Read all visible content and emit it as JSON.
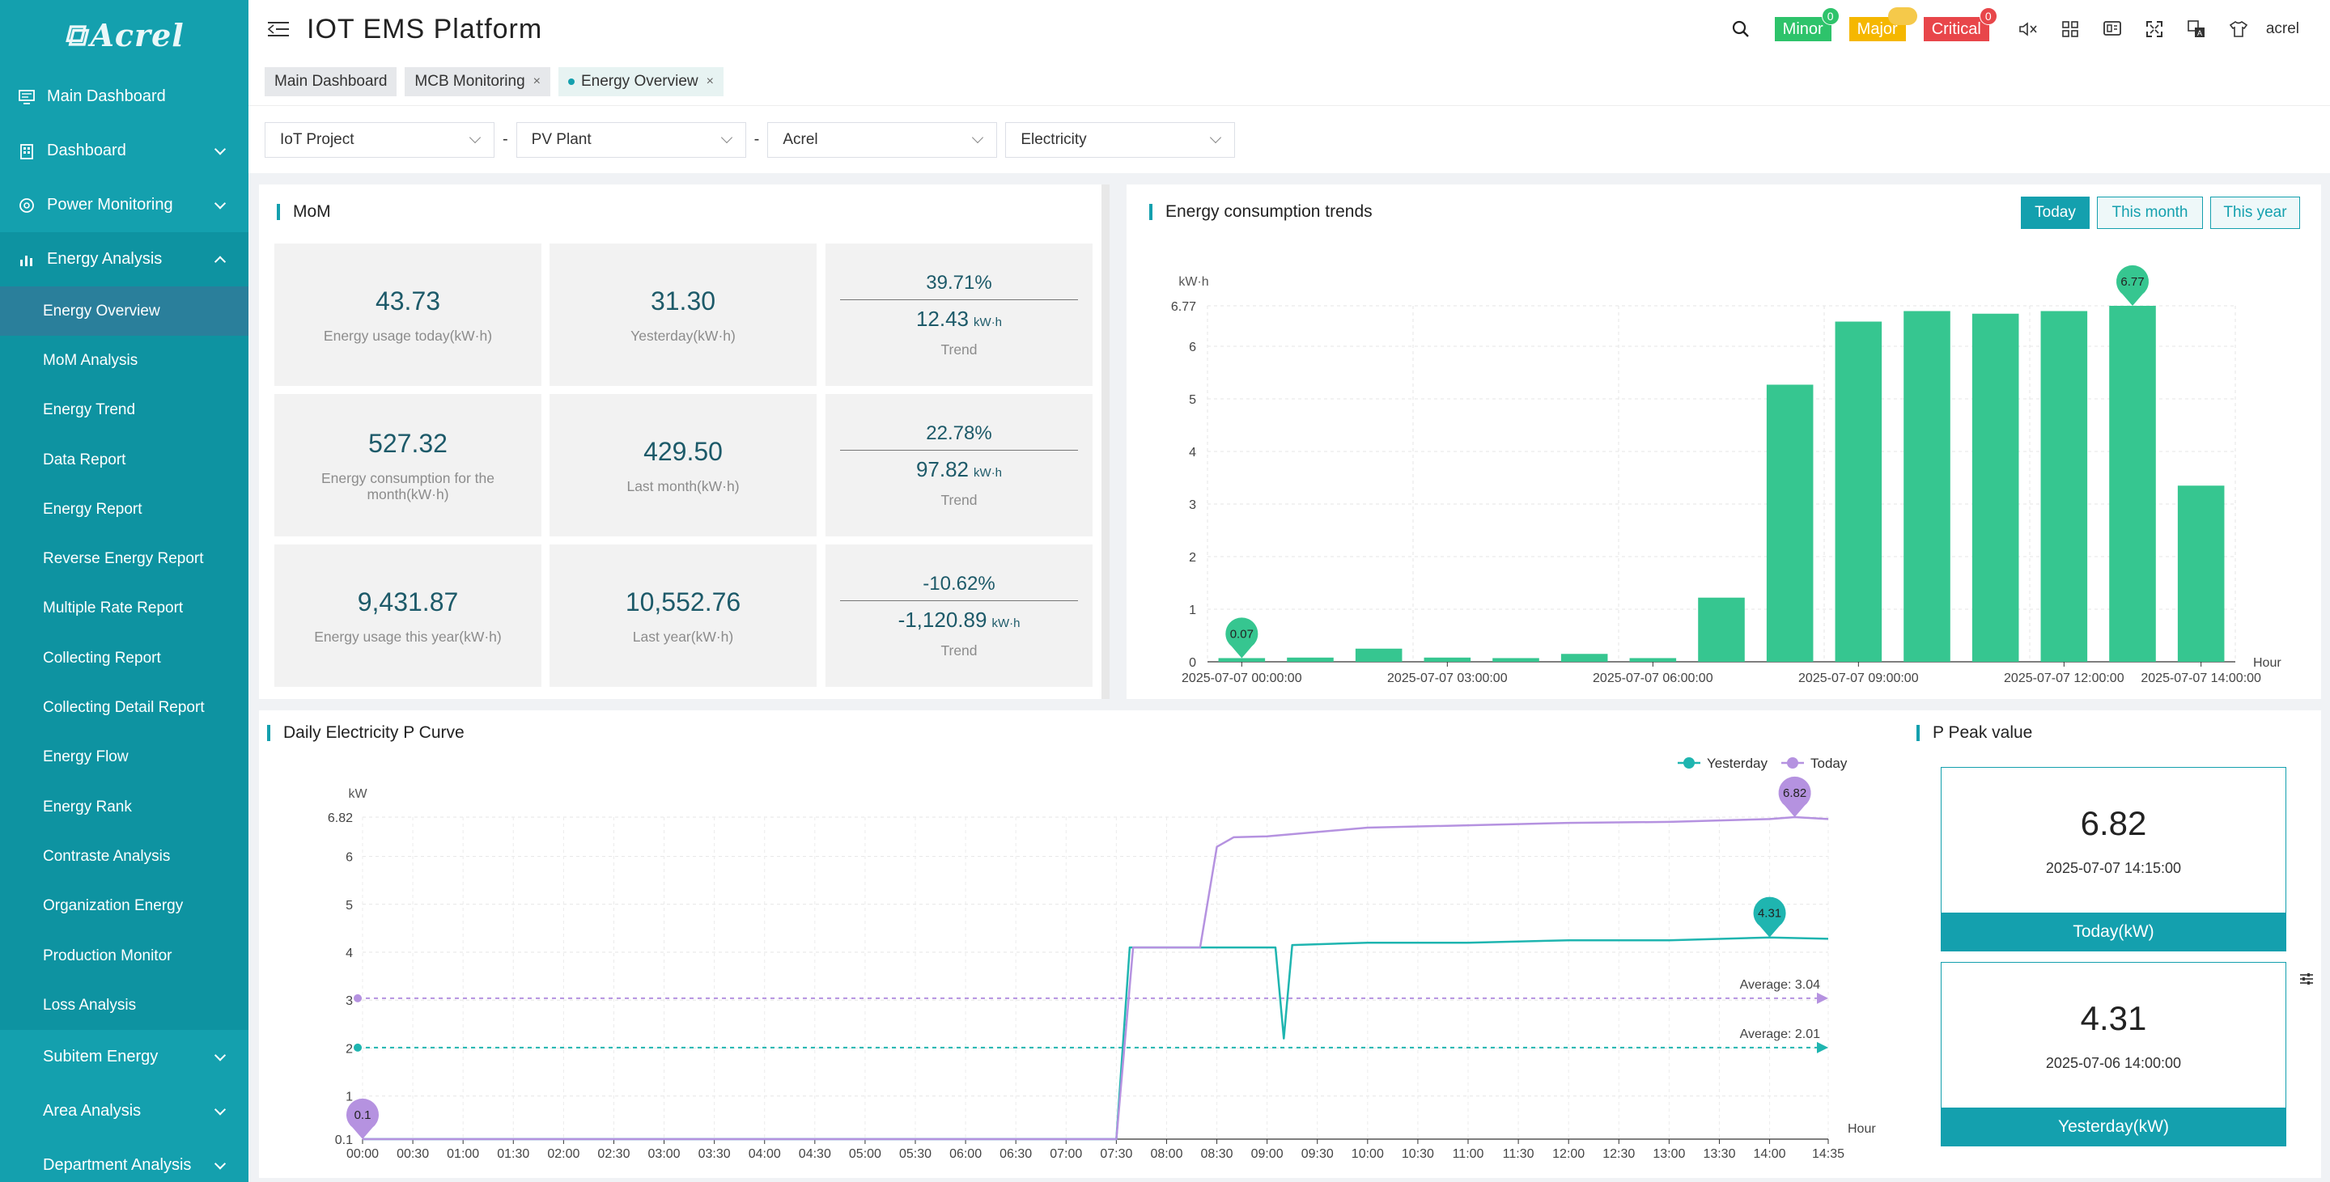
{
  "logo": "Acrel",
  "app_title": "IOT EMS Platform",
  "sidebar": {
    "items": [
      {
        "label": "Main Dashboard",
        "icon": "monitor-icon"
      },
      {
        "label": "Dashboard",
        "icon": "building-icon"
      },
      {
        "label": "Power Monitoring",
        "icon": "gauge-icon"
      },
      {
        "label": "Energy Analysis",
        "icon": "bar-chart-icon"
      }
    ],
    "sub_items": [
      "Energy Overview",
      "MoM Analysis",
      "Energy Trend",
      "Data Report",
      "Energy Report",
      "Reverse Energy Report",
      "Multiple Rate Report",
      "Collecting Report",
      "Collecting Detail Report",
      "Energy Flow",
      "Energy Rank",
      "Contraste Analysis",
      "Organization Energy",
      "Production Monitor",
      "Loss Analysis"
    ],
    "bottom_items": [
      "Subitem Energy",
      "Area Analysis",
      "Department Analysis"
    ]
  },
  "header": {
    "alarms": [
      {
        "label": "Minor",
        "count": "0",
        "color": "#2ec36b",
        "badge": "#2ec36b"
      },
      {
        "label": "Major",
        "count": "",
        "color": "#f5b700",
        "badge": "#f5c94a"
      },
      {
        "label": "Critical",
        "count": "0",
        "color": "#e8464a",
        "badge": "#e8464a"
      }
    ],
    "username": "acrel"
  },
  "tabs": [
    {
      "label": "Main Dashboard",
      "closable": false
    },
    {
      "label": "MCB Monitoring",
      "closable": true
    },
    {
      "label": "Energy Overview",
      "closable": true,
      "active": true
    }
  ],
  "filters": {
    "project": "IoT Project",
    "plant": "PV Plant",
    "company": "Acrel",
    "type": "Electricity"
  },
  "mom": {
    "title": "MoM",
    "rows": [
      {
        "value": "43.73",
        "label": "Energy usage today(kW·h)",
        "prev_value": "31.30",
        "prev_label": "Yesterday(kW·h)",
        "pct": "39.71%",
        "delta": "12.43",
        "unit": "kW·h",
        "trend_label": "Trend"
      },
      {
        "value": "527.32",
        "label": "Energy consumption for the month(kW·h)",
        "prev_value": "429.50",
        "prev_label": "Last month(kW·h)",
        "pct": "22.78%",
        "delta": "97.82",
        "unit": "kW·h",
        "trend_label": "Trend"
      },
      {
        "value": "9,431.87",
        "label": "Energy usage this year(kW·h)",
        "prev_value": "10,552.76",
        "prev_label": "Last year(kW·h)",
        "pct": "-10.62%",
        "delta": "-1,120.89",
        "unit": "kW·h",
        "trend_label": "Trend"
      }
    ]
  },
  "trends": {
    "title": "Energy consumption trends",
    "buttons": [
      "Today",
      "This month",
      "This year"
    ],
    "active_button": "Today"
  },
  "pcurve": {
    "title": "Daily Electricity P Curve"
  },
  "peak": {
    "title": "P Peak value",
    "today": {
      "value": "6.82",
      "time": "2025-07-07 14:15:00",
      "label": "Today(kW)"
    },
    "yesterday": {
      "value": "4.31",
      "time": "2025-07-06 14:00:00",
      "label": "Yesterday(kW)"
    }
  },
  "chart_data": [
    {
      "type": "bar",
      "ylabel": "kW·h",
      "xlabel": "Hour",
      "ylim": [
        0,
        6.77
      ],
      "yticks": [
        "0",
        "1",
        "2",
        "3",
        "4",
        "5",
        "6",
        "6.77"
      ],
      "xtick_labels": [
        "2025-07-07 00:00:00",
        "2025-07-07 03:00:00",
        "2025-07-07 06:00:00",
        "2025-07-07 09:00:00",
        "2025-07-07 12:00:00",
        "2025-07-07 14:00:00"
      ],
      "categories": [
        "00:00",
        "01:00",
        "02:00",
        "03:00",
        "04:00",
        "05:00",
        "06:00",
        "07:00",
        "08:00",
        "09:00",
        "10:00",
        "11:00",
        "12:00",
        "13:00",
        "14:00"
      ],
      "values": [
        0.07,
        0.08,
        0.25,
        0.08,
        0.07,
        0.15,
        0.07,
        1.22,
        5.27,
        6.47,
        6.67,
        6.62,
        6.67,
        6.77,
        3.35
      ],
      "markers": [
        {
          "category": "00:00",
          "value": "0.07"
        },
        {
          "category": "13:00",
          "value": "6.77"
        }
      ],
      "bar_color": "#36c690"
    },
    {
      "type": "line",
      "ylabel": "kW",
      "xlabel": "Hour",
      "ylim": [
        0.1,
        6.82
      ],
      "yticks": [
        "0.1",
        "1",
        "2",
        "3",
        "4",
        "5",
        "6",
        "6.82"
      ],
      "x": [
        "00:00",
        "00:30",
        "01:00",
        "01:30",
        "02:00",
        "02:30",
        "03:00",
        "03:30",
        "04:00",
        "04:30",
        "05:00",
        "05:30",
        "06:00",
        "06:30",
        "07:00",
        "07:30",
        "08:00",
        "08:30",
        "09:00",
        "09:30",
        "10:00",
        "10:30",
        "11:00",
        "11:30",
        "12:00",
        "12:30",
        "13:00",
        "13:30",
        "14:00",
        "14:35"
      ],
      "legend": [
        "Yesterday",
        "Today"
      ],
      "series": [
        {
          "name": "Yesterday",
          "color": "#1fb5b0",
          "points": [
            [
              "00:00",
              0.1
            ],
            [
              "07:30",
              0.1
            ],
            [
              "07:38",
              4.1
            ],
            [
              "08:00",
              4.1
            ],
            [
              "08:30",
              4.1
            ],
            [
              "09:00",
              4.1
            ],
            [
              "09:05",
              4.1
            ],
            [
              "09:10",
              2.2
            ],
            [
              "09:15",
              4.15
            ],
            [
              "10:00",
              4.2
            ],
            [
              "11:00",
              4.2
            ],
            [
              "12:00",
              4.25
            ],
            [
              "13:00",
              4.25
            ],
            [
              "14:00",
              4.31
            ],
            [
              "14:35",
              4.28
            ]
          ],
          "average": 2.01,
          "average_label": "Average:  2.01",
          "peak_label": "4.31",
          "peak_time": "14:00"
        },
        {
          "name": "Today",
          "color": "#b592e0",
          "points": [
            [
              "00:00",
              0.1
            ],
            [
              "07:30",
              0.1
            ],
            [
              "07:40",
              4.1
            ],
            [
              "08:00",
              4.1
            ],
            [
              "08:20",
              4.1
            ],
            [
              "08:30",
              6.2
            ],
            [
              "08:40",
              6.4
            ],
            [
              "09:00",
              6.42
            ],
            [
              "10:00",
              6.6
            ],
            [
              "11:00",
              6.65
            ],
            [
              "12:00",
              6.7
            ],
            [
              "13:00",
              6.72
            ],
            [
              "14:00",
              6.78
            ],
            [
              "14:15",
              6.82
            ],
            [
              "14:35",
              6.78
            ]
          ],
          "average": 3.04,
          "average_label": "Average:  3.04",
          "peak_label": "6.82",
          "peak_time": "14:15",
          "min_label": "0.1"
        }
      ]
    }
  ]
}
